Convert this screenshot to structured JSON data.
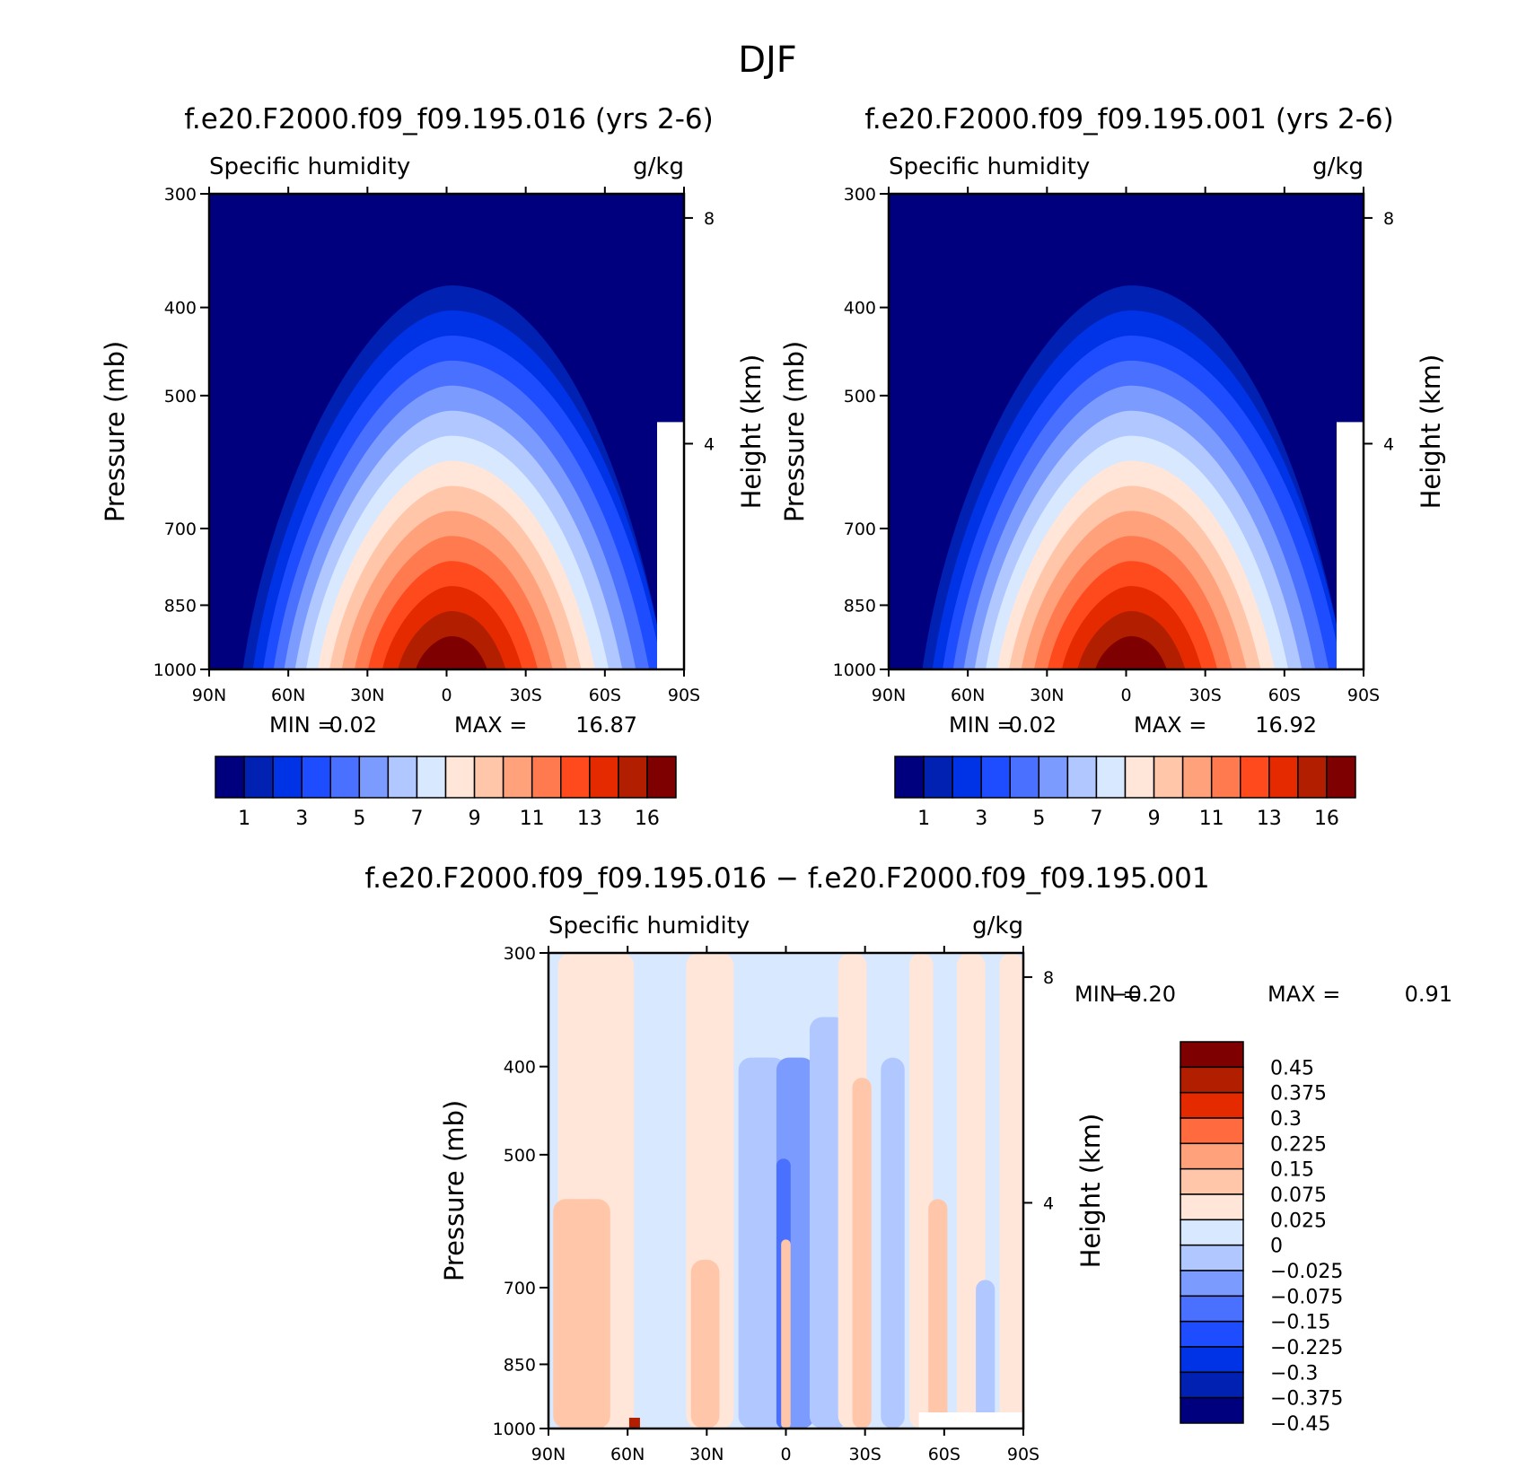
{
  "figure": {
    "title": "DJF"
  },
  "chart_data": [
    {
      "type": "heatmap",
      "title": "f.e20.F2000.f09_f09.195.016 (yrs 2-6)",
      "variable": "Specific humidity",
      "units": "g/kg",
      "xlabel": "",
      "ylabel": "Pressure (mb)",
      "ylabel_right": "Height (km)",
      "x_ticks": [
        "90N",
        "60N",
        "30N",
        "0",
        "30S",
        "60S",
        "90S"
      ],
      "y_ticks": [
        300,
        400,
        500,
        700,
        850,
        1000
      ],
      "y2_ticks": [
        8,
        4
      ],
      "ylim": [
        1000,
        300
      ],
      "xlim": [
        "90N",
        "90S"
      ],
      "stats": {
        "min_label": "MIN =",
        "min": "0.02",
        "max_label": "MAX =",
        "max": "16.87"
      },
      "colorbar": {
        "orientation": "horizontal",
        "colors": [
          "#00007f",
          "#0021b2",
          "#0032e6",
          "#1e4cff",
          "#4a70ff",
          "#7c9bff",
          "#b0c8ff",
          "#d8e8ff",
          "#ffe6d8",
          "#ffc6aa",
          "#ffa27c",
          "#ff7a4e",
          "#ff4a1e",
          "#e62a00",
          "#b21e00",
          "#7f0000"
        ],
        "labels": [
          "1",
          "3",
          "5",
          "7",
          "9",
          "11",
          "13",
          "16"
        ]
      }
    },
    {
      "type": "heatmap",
      "title": "f.e20.F2000.f09_f09.195.001 (yrs 2-6)",
      "variable": "Specific humidity",
      "units": "g/kg",
      "xlabel": "",
      "ylabel": "Pressure (mb)",
      "ylabel_right": "Height (km)",
      "x_ticks": [
        "90N",
        "60N",
        "30N",
        "0",
        "30S",
        "60S",
        "90S"
      ],
      "y_ticks": [
        300,
        400,
        500,
        700,
        850,
        1000
      ],
      "y2_ticks": [
        8,
        4
      ],
      "ylim": [
        1000,
        300
      ],
      "xlim": [
        "90N",
        "90S"
      ],
      "stats": {
        "min_label": "MIN =",
        "min": "0.02",
        "max_label": "MAX =",
        "max": "16.92"
      },
      "colorbar": {
        "orientation": "horizontal",
        "colors": [
          "#00007f",
          "#0021b2",
          "#0032e6",
          "#1e4cff",
          "#4a70ff",
          "#7c9bff",
          "#b0c8ff",
          "#d8e8ff",
          "#ffe6d8",
          "#ffc6aa",
          "#ffa27c",
          "#ff7a4e",
          "#ff4a1e",
          "#e62a00",
          "#b21e00",
          "#7f0000"
        ],
        "labels": [
          "1",
          "3",
          "5",
          "7",
          "9",
          "11",
          "13",
          "16"
        ]
      }
    },
    {
      "type": "heatmap",
      "title": "f.e20.F2000.f09_f09.195.016 − f.e20.F2000.f09_f09.195.001",
      "variable": "Specific humidity",
      "units": "g/kg",
      "xlabel": "",
      "ylabel": "Pressure (mb)",
      "ylabel_right": "Height (km)",
      "x_ticks": [
        "90N",
        "60N",
        "30N",
        "0",
        "30S",
        "60S",
        "90S"
      ],
      "y_ticks": [
        300,
        400,
        500,
        700,
        850,
        1000
      ],
      "y2_ticks": [
        8,
        4
      ],
      "ylim": [
        1000,
        300
      ],
      "xlim": [
        "90N",
        "90S"
      ],
      "stats": {
        "min_label": "MIN =",
        "min": "−0.20",
        "max_label": "MAX =",
        "max": "0.91"
      },
      "colorbar": {
        "orientation": "vertical",
        "colors": [
          "#7f0000",
          "#b21e00",
          "#e62a00",
          "#ff6a3e",
          "#ffa27c",
          "#ffc6aa",
          "#ffe6d8",
          "#d8e8ff",
          "#b0c8ff",
          "#7c9bff",
          "#4a70ff",
          "#1e4cff",
          "#0032e6",
          "#0021b2",
          "#00007f"
        ],
        "labels": [
          "0.45",
          "0.375",
          "0.3",
          "0.225",
          "0.15",
          "0.075",
          "0.025",
          "0",
          "−0.025",
          "−0.075",
          "−0.15",
          "−0.225",
          "−0.3",
          "−0.375",
          "−0.45"
        ]
      }
    }
  ]
}
